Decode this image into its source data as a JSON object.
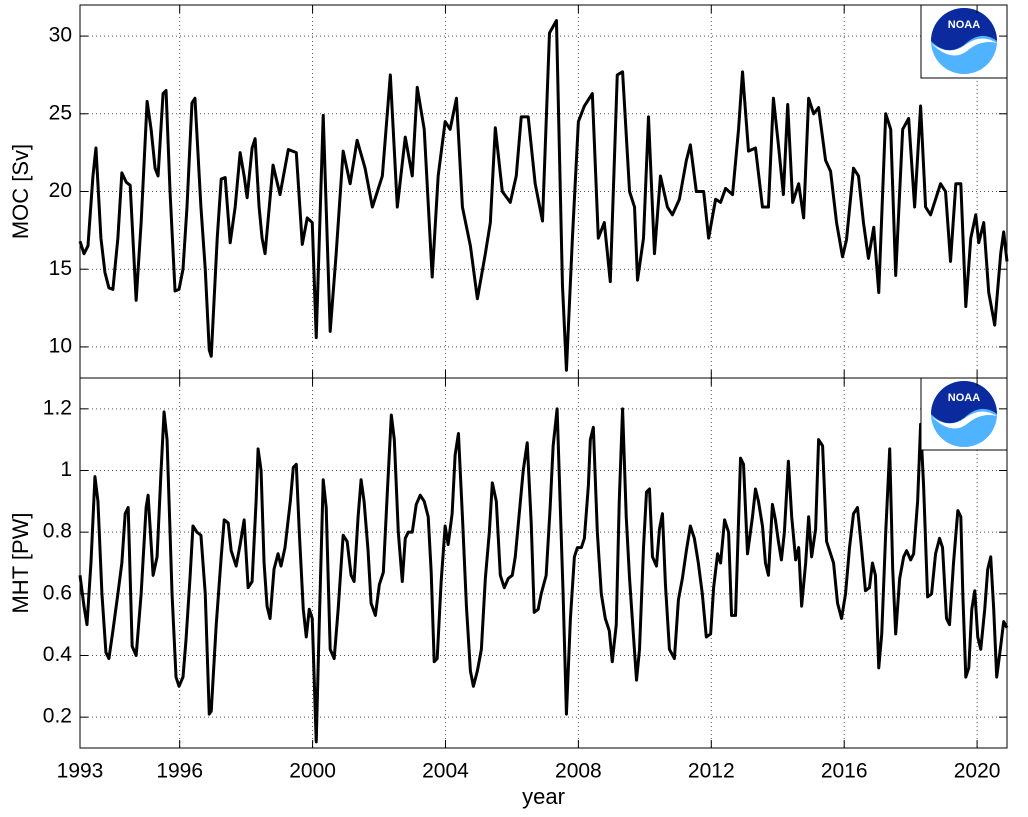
{
  "chart_data": {
    "type": "line",
    "xlabel": "year",
    "xlim": [
      1993,
      2020.9
    ],
    "xticks": [
      1993,
      1996,
      2000,
      2004,
      2008,
      2012,
      2016,
      2020
    ],
    "grid": true,
    "color": "#000000",
    "panels": [
      {
        "ylabel": "MOC [Sv]",
        "ylim": [
          8,
          32
        ],
        "yticks": [
          10,
          15,
          20,
          25,
          30
        ],
        "x": [
          1993.0,
          1993.12,
          1993.24,
          1993.39,
          1993.48,
          1993.63,
          1993.75,
          1993.87,
          1993.99,
          1994.14,
          1994.26,
          1994.39,
          1994.51,
          1994.69,
          1994.84,
          1995.02,
          1995.14,
          1995.26,
          1995.35,
          1995.5,
          1995.59,
          1995.71,
          1995.86,
          1995.98,
          1996.1,
          1996.22,
          1996.37,
          1996.46,
          1996.64,
          1996.77,
          1996.89,
          1996.95,
          1997.13,
          1997.25,
          1997.37,
          1997.52,
          1997.67,
          1997.82,
          1997.94,
          1998.03,
          1998.18,
          1998.27,
          1998.39,
          1998.48,
          1998.57,
          1998.81,
          1999.02,
          1999.27,
          1999.51,
          1999.69,
          1999.84,
          1999.99,
          2000.11,
          2000.32,
          2000.53,
          2000.71,
          2000.92,
          2001.13,
          2001.34,
          2001.58,
          2001.8,
          2002.1,
          2002.34,
          2002.55,
          2002.79,
          2003.0,
          2003.15,
          2003.36,
          2003.6,
          2003.78,
          2003.99,
          2004.14,
          2004.33,
          2004.51,
          2004.75,
          2004.96,
          2005.2,
          2005.35,
          2005.5,
          2005.71,
          2005.95,
          2006.13,
          2006.28,
          2006.49,
          2006.7,
          2006.92,
          2007.13,
          2007.34,
          2007.52,
          2007.64,
          2007.82,
          2008.0,
          2008.18,
          2008.42,
          2008.6,
          2008.78,
          2008.96,
          2009.17,
          2009.33,
          2009.54,
          2009.69,
          2009.78,
          2009.96,
          2010.11,
          2010.29,
          2010.47,
          2010.68,
          2010.83,
          2011.04,
          2011.25,
          2011.37,
          2011.55,
          2011.77,
          2011.92,
          2012.13,
          2012.28,
          2012.43,
          2012.64,
          2012.82,
          2012.94,
          2013.12,
          2013.33,
          2013.54,
          2013.72,
          2013.87,
          2014.02,
          2014.17,
          2014.3,
          2014.45,
          2014.63,
          2014.78,
          2014.93,
          2015.08,
          2015.23,
          2015.44,
          2015.59,
          2015.77,
          2015.95,
          2016.07,
          2016.28,
          2016.43,
          2016.58,
          2016.73,
          2016.89,
          2017.04,
          2017.25,
          2017.4,
          2017.55,
          2017.76,
          2017.94,
          2018.12,
          2018.3,
          2018.45,
          2018.6,
          2018.9,
          2019.05,
          2019.2,
          2019.36,
          2019.51,
          2019.66,
          2019.81,
          2019.96,
          2020.05,
          2020.2,
          2020.35,
          2020.53,
          2020.71,
          2020.8,
          2020.9
        ],
        "values": [
          16.8,
          16,
          16.5,
          21,
          22.8,
          17,
          14.8,
          13.8,
          13.7,
          17,
          21.2,
          20.6,
          20.4,
          13,
          18,
          25.8,
          24,
          21.5,
          21,
          26.3,
          26.5,
          20,
          13.6,
          13.7,
          15,
          19,
          25.7,
          26,
          19,
          15,
          9.8,
          9.4,
          17,
          20.8,
          20.9,
          16.7,
          19,
          22.5,
          21,
          19.6,
          22.8,
          23.4,
          19,
          17,
          16,
          21.7,
          19.8,
          22.7,
          22.5,
          16.6,
          18.3,
          18,
          10.6,
          24.9,
          11,
          16,
          22.6,
          20.5,
          23.3,
          21.5,
          19,
          21,
          27.5,
          19,
          23.5,
          21,
          26.7,
          24,
          14.5,
          21,
          24.5,
          24,
          26,
          19,
          16.5,
          13.1,
          16,
          18,
          24.1,
          20,
          19.3,
          21,
          24.8,
          24.8,
          20.5,
          18.1,
          30.2,
          31,
          14,
          8.5,
          17,
          24.5,
          25.5,
          26.3,
          17,
          18,
          14.2,
          27.5,
          27.7,
          20,
          19,
          14.3,
          17,
          24.8,
          16,
          21,
          19,
          18.5,
          19.5,
          22,
          23,
          20,
          20,
          17,
          19.5,
          19.3,
          20.2,
          19.8,
          24,
          27.7,
          22.6,
          22.8,
          19,
          19,
          26,
          23,
          19.8,
          25.6,
          19.3,
          20.5,
          18.3,
          26,
          25,
          25.4,
          22,
          21.3,
          18,
          15.8,
          16.9,
          21.5,
          21,
          18,
          15.7,
          17.7,
          13.5,
          25,
          24,
          14.6,
          24,
          24.7,
          19,
          25.5,
          19,
          18.5,
          20.5,
          20,
          15.5,
          20.5,
          20.5,
          12.6,
          17,
          18.5,
          16.7,
          18,
          13.5,
          11.4,
          16,
          17.4,
          15.5
        ]
      },
      {
        "ylabel": "MHT [PW]",
        "ylim": [
          0.1,
          1.3
        ],
        "yticks": [
          0.2,
          0.4,
          0.6,
          0.8,
          1,
          1.2
        ],
        "x": [
          1993.0,
          1993.12,
          1993.21,
          1993.33,
          1993.45,
          1993.54,
          1993.66,
          1993.78,
          1993.87,
          1993.99,
          1994.14,
          1994.26,
          1994.36,
          1994.45,
          1994.57,
          1994.69,
          1994.84,
          1994.99,
          1995.05,
          1995.2,
          1995.32,
          1995.44,
          1995.53,
          1995.62,
          1995.77,
          1995.89,
          1995.98,
          1996.1,
          1996.19,
          1996.31,
          1996.4,
          1996.52,
          1996.64,
          1996.77,
          1996.89,
          1996.95,
          1997.1,
          1997.25,
          1997.34,
          1997.46,
          1997.55,
          1997.7,
          1997.82,
          1997.94,
          1998.06,
          1998.18,
          1998.3,
          1998.36,
          1998.45,
          1998.54,
          1998.63,
          1998.72,
          1998.84,
          1998.96,
          1999.05,
          1999.17,
          1999.33,
          1999.42,
          1999.51,
          1999.6,
          1999.72,
          1999.81,
          1999.9,
          1999.99,
          2000.11,
          2000.2,
          2000.32,
          2000.41,
          2000.53,
          2000.65,
          2000.77,
          2000.92,
          2001.04,
          2001.16,
          2001.25,
          2001.37,
          2001.46,
          2001.55,
          2001.67,
          2001.76,
          2001.89,
          2002.01,
          2002.13,
          2002.25,
          2002.37,
          2002.46,
          2002.58,
          2002.7,
          2002.79,
          2002.88,
          2003.0,
          2003.12,
          2003.24,
          2003.36,
          2003.48,
          2003.57,
          2003.66,
          2003.75,
          2003.87,
          2003.99,
          2004.08,
          2004.2,
          2004.29,
          2004.39,
          2004.51,
          2004.63,
          2004.75,
          2004.84,
          2004.96,
          2005.08,
          2005.2,
          2005.32,
          2005.41,
          2005.53,
          2005.65,
          2005.77,
          2005.89,
          2006.01,
          2006.1,
          2006.22,
          2006.34,
          2006.46,
          2006.58,
          2006.67,
          2006.79,
          2006.88,
          2007.03,
          2007.15,
          2007.24,
          2007.36,
          2007.45,
          2007.54,
          2007.64,
          2007.76,
          2007.88,
          2007.97,
          2008.09,
          2008.18,
          2008.3,
          2008.36,
          2008.45,
          2008.57,
          2008.69,
          2008.81,
          2008.93,
          2009.02,
          2009.14,
          2009.23,
          2009.33,
          2009.44,
          2009.54,
          2009.66,
          2009.75,
          2009.84,
          2009.96,
          2010.05,
          2010.14,
          2010.23,
          2010.35,
          2010.44,
          2010.53,
          2010.62,
          2010.74,
          2010.89,
          2011.01,
          2011.13,
          2011.25,
          2011.37,
          2011.49,
          2011.61,
          2011.73,
          2011.85,
          2011.98,
          2012.07,
          2012.19,
          2012.28,
          2012.4,
          2012.52,
          2012.61,
          2012.73,
          2012.88,
          2012.97,
          2013.09,
          2013.24,
          2013.33,
          2013.42,
          2013.54,
          2013.63,
          2013.72,
          2013.84,
          2013.93,
          2014.02,
          2014.11,
          2014.2,
          2014.32,
          2014.42,
          2014.54,
          2014.63,
          2014.72,
          2014.84,
          2014.93,
          2015.02,
          2015.14,
          2015.23,
          2015.35,
          2015.47,
          2015.56,
          2015.68,
          2015.8,
          2015.92,
          2016.04,
          2016.16,
          2016.28,
          2016.4,
          2016.52,
          2016.64,
          2016.76,
          2016.85,
          2016.94,
          2017.04,
          2017.13,
          2017.25,
          2017.37,
          2017.46,
          2017.55,
          2017.67,
          2017.79,
          2017.88,
          2018.0,
          2018.09,
          2018.21,
          2018.3,
          2018.39,
          2018.51,
          2018.63,
          2018.75,
          2018.87,
          2018.96,
          2019.08,
          2019.17,
          2019.29,
          2019.42,
          2019.51,
          2019.57,
          2019.66,
          2019.75,
          2019.84,
          2019.93,
          2020.02,
          2020.11,
          2020.23,
          2020.32,
          2020.41,
          2020.5,
          2020.59,
          2020.71,
          2020.8,
          2020.9
        ],
        "values": [
          0.66,
          0.56,
          0.5,
          0.7,
          0.98,
          0.9,
          0.6,
          0.41,
          0.39,
          0.48,
          0.6,
          0.7,
          0.86,
          0.88,
          0.43,
          0.4,
          0.6,
          0.88,
          0.92,
          0.66,
          0.72,
          1,
          1.19,
          1.1,
          0.6,
          0.33,
          0.3,
          0.33,
          0.45,
          0.65,
          0.82,
          0.8,
          0.79,
          0.6,
          0.21,
          0.22,
          0.5,
          0.72,
          0.84,
          0.83,
          0.74,
          0.69,
          0.76,
          0.84,
          0.62,
          0.64,
          0.9,
          1.07,
          1,
          0.7,
          0.56,
          0.52,
          0.68,
          0.73,
          0.69,
          0.75,
          0.9,
          1.01,
          1.02,
          0.8,
          0.55,
          0.46,
          0.55,
          0.52,
          0.12,
          0.5,
          0.97,
          0.88,
          0.42,
          0.39,
          0.55,
          0.79,
          0.77,
          0.66,
          0.64,
          0.85,
          0.97,
          0.9,
          0.74,
          0.57,
          0.53,
          0.63,
          0.67,
          0.93,
          1.18,
          1.1,
          0.8,
          0.64,
          0.78,
          0.8,
          0.8,
          0.89,
          0.92,
          0.9,
          0.85,
          0.67,
          0.38,
          0.39,
          0.64,
          0.82,
          0.76,
          0.86,
          1.05,
          1.12,
          0.85,
          0.56,
          0.35,
          0.3,
          0.35,
          0.42,
          0.65,
          0.8,
          0.96,
          0.9,
          0.66,
          0.62,
          0.65,
          0.66,
          0.72,
          0.86,
          1,
          1.09,
          0.83,
          0.54,
          0.55,
          0.6,
          0.66,
          0.88,
          1.08,
          1.2,
          0.9,
          0.6,
          0.21,
          0.52,
          0.72,
          0.75,
          0.75,
          0.78,
          0.95,
          1.1,
          1.14,
          0.8,
          0.6,
          0.52,
          0.48,
          0.38,
          0.5,
          0.9,
          1.2,
          0.85,
          0.65,
          0.46,
          0.32,
          0.42,
          0.75,
          0.93,
          0.94,
          0.72,
          0.69,
          0.81,
          0.86,
          0.63,
          0.42,
          0.39,
          0.58,
          0.65,
          0.74,
          0.82,
          0.78,
          0.7,
          0.6,
          0.46,
          0.47,
          0.62,
          0.73,
          0.7,
          0.84,
          0.8,
          0.53,
          0.53,
          1.04,
          1.02,
          0.73,
          0.85,
          0.94,
          0.9,
          0.82,
          0.7,
          0.66,
          0.89,
          0.84,
          0.77,
          0.71,
          0.8,
          1.03,
          0.85,
          0.71,
          0.75,
          0.56,
          0.7,
          0.85,
          0.72,
          0.81,
          1.1,
          1.08,
          0.77,
          0.74,
          0.7,
          0.57,
          0.52,
          0.6,
          0.75,
          0.86,
          0.88,
          0.75,
          0.61,
          0.62,
          0.7,
          0.66,
          0.36,
          0.47,
          0.8,
          1.07,
          0.68,
          0.47,
          0.65,
          0.72,
          0.74,
          0.71,
          0.73,
          0.9,
          1.15,
          0.95,
          0.59,
          0.6,
          0.73,
          0.78,
          0.75,
          0.52,
          0.5,
          0.7,
          0.87,
          0.85,
          0.6,
          0.33,
          0.36,
          0.55,
          0.61,
          0.46,
          0.42,
          0.55,
          0.68,
          0.72,
          0.55,
          0.33,
          0.43,
          0.51,
          0.49
        ]
      }
    ]
  },
  "logo_text": "NOAA"
}
